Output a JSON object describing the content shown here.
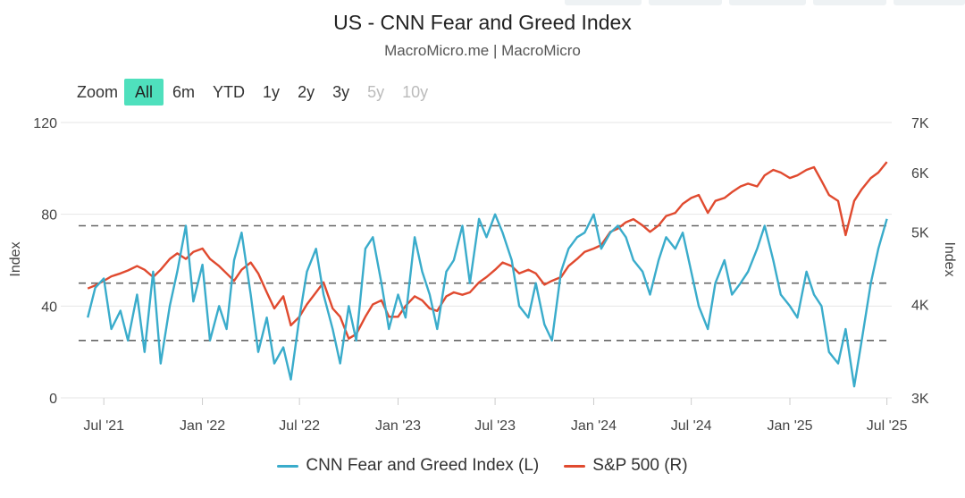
{
  "header": {
    "title": "US - CNN Fear and Greed Index",
    "subtitle": "MacroMicro.me | MacroMicro"
  },
  "zoom": {
    "label": "Zoom",
    "buttons": [
      {
        "label": "All",
        "state": "active"
      },
      {
        "label": "6m",
        "state": "normal"
      },
      {
        "label": "YTD",
        "state": "normal"
      },
      {
        "label": "1y",
        "state": "normal"
      },
      {
        "label": "2y",
        "state": "normal"
      },
      {
        "label": "3y",
        "state": "normal"
      },
      {
        "label": "5y",
        "state": "disabled"
      },
      {
        "label": "10y",
        "state": "disabled"
      }
    ]
  },
  "colors": {
    "fear_greed": "#3aaccb",
    "sp500": "#e04a2f",
    "grid": "#e6e6e6",
    "reference": "#666666",
    "zoom_active": "#4fe0bd"
  },
  "legend": {
    "fear_greed": "CNN Fear and Greed Index (L)",
    "sp500": "S&P 500 (R)"
  },
  "chart_data": {
    "type": "line",
    "left_axis": {
      "label": "Index",
      "ticks": [
        "120",
        "80",
        "40",
        "0"
      ],
      "range": [
        0,
        120
      ]
    },
    "right_axis": {
      "label": "Index",
      "ticks": [
        "7K",
        "6K",
        "5K",
        "4K",
        "3K"
      ],
      "range": [
        3000,
        7000
      ],
      "scale": "log"
    },
    "x_axis": {
      "ticks": [
        "Jul '21",
        "Jan '22",
        "Jul '22",
        "Jan '23",
        "Jul '23",
        "Jan '24",
        "Jul '24",
        "Jan '25",
        "Jul '25"
      ],
      "tick_dates": [
        "2021-07-01",
        "2022-01-01",
        "2022-07-01",
        "2023-01-01",
        "2023-07-01",
        "2024-01-01",
        "2024-07-01",
        "2025-01-01",
        "2025-07-01"
      ],
      "range": [
        "2021-05-15",
        "2025-07-10"
      ]
    },
    "reference_lines": [
      25,
      50,
      75
    ],
    "grid": true,
    "legend_position": "bottom-center",
    "series": [
      {
        "name": "CNN Fear and Greed Index (L)",
        "axis": "left",
        "x": [
          "2021-06-01",
          "2021-06-15",
          "2021-07-01",
          "2021-07-15",
          "2021-08-01",
          "2021-08-15",
          "2021-09-01",
          "2021-09-15",
          "2021-10-01",
          "2021-10-15",
          "2021-11-01",
          "2021-11-15",
          "2021-12-01",
          "2021-12-15",
          "2022-01-01",
          "2022-01-15",
          "2022-02-01",
          "2022-02-15",
          "2022-03-01",
          "2022-03-15",
          "2022-04-01",
          "2022-04-15",
          "2022-05-01",
          "2022-05-15",
          "2022-06-01",
          "2022-06-15",
          "2022-07-01",
          "2022-07-15",
          "2022-08-01",
          "2022-08-15",
          "2022-09-01",
          "2022-09-15",
          "2022-10-01",
          "2022-10-15",
          "2022-11-01",
          "2022-11-15",
          "2022-12-01",
          "2022-12-15",
          "2023-01-01",
          "2023-01-15",
          "2023-02-01",
          "2023-02-15",
          "2023-03-01",
          "2023-03-15",
          "2023-04-01",
          "2023-04-15",
          "2023-05-01",
          "2023-05-15",
          "2023-06-01",
          "2023-06-15",
          "2023-07-01",
          "2023-07-15",
          "2023-08-01",
          "2023-08-15",
          "2023-09-01",
          "2023-09-15",
          "2023-10-01",
          "2023-10-15",
          "2023-11-01",
          "2023-11-15",
          "2023-12-01",
          "2023-12-15",
          "2024-01-01",
          "2024-01-15",
          "2024-02-01",
          "2024-02-15",
          "2024-03-01",
          "2024-03-15",
          "2024-04-01",
          "2024-04-15",
          "2024-05-01",
          "2024-05-15",
          "2024-06-01",
          "2024-06-15",
          "2024-07-01",
          "2024-07-15",
          "2024-08-01",
          "2024-08-15",
          "2024-09-01",
          "2024-09-15",
          "2024-10-01",
          "2024-10-15",
          "2024-11-01",
          "2024-11-15",
          "2024-12-01",
          "2024-12-15",
          "2025-01-01",
          "2025-01-15",
          "2025-02-01",
          "2025-02-15",
          "2025-03-01",
          "2025-03-15",
          "2025-04-01",
          "2025-04-15",
          "2025-05-01",
          "2025-05-15",
          "2025-06-01",
          "2025-06-15",
          "2025-07-01"
        ],
        "values": [
          35,
          48,
          52,
          30,
          38,
          25,
          45,
          20,
          55,
          15,
          40,
          55,
          75,
          42,
          58,
          25,
          40,
          30,
          60,
          72,
          45,
          20,
          35,
          15,
          22,
          8,
          35,
          55,
          65,
          45,
          30,
          15,
          40,
          25,
          65,
          70,
          50,
          30,
          45,
          35,
          70,
          55,
          45,
          30,
          55,
          60,
          75,
          50,
          78,
          70,
          80,
          72,
          60,
          40,
          35,
          50,
          32,
          25,
          55,
          65,
          70,
          72,
          80,
          65,
          72,
          75,
          70,
          60,
          55,
          45,
          60,
          70,
          65,
          72,
          55,
          40,
          30,
          50,
          60,
          45,
          50,
          55,
          65,
          75,
          60,
          45,
          40,
          35,
          55,
          45,
          40,
          20,
          15,
          30,
          5,
          25,
          50,
          65,
          78
        ]
      },
      {
        "name": "S&P 500 (R)",
        "axis": "right",
        "x": [
          "2021-06-01",
          "2021-06-15",
          "2021-07-01",
          "2021-07-15",
          "2021-08-01",
          "2021-08-15",
          "2021-09-01",
          "2021-09-15",
          "2021-10-01",
          "2021-10-15",
          "2021-11-01",
          "2021-11-15",
          "2021-12-01",
          "2021-12-15",
          "2022-01-01",
          "2022-01-15",
          "2022-02-01",
          "2022-02-15",
          "2022-03-01",
          "2022-03-15",
          "2022-04-01",
          "2022-04-15",
          "2022-05-01",
          "2022-05-15",
          "2022-06-01",
          "2022-06-15",
          "2022-07-01",
          "2022-07-15",
          "2022-08-01",
          "2022-08-15",
          "2022-09-01",
          "2022-09-15",
          "2022-10-01",
          "2022-10-15",
          "2022-11-01",
          "2022-11-15",
          "2022-12-01",
          "2022-12-15",
          "2023-01-01",
          "2023-01-15",
          "2023-02-01",
          "2023-02-15",
          "2023-03-01",
          "2023-03-15",
          "2023-04-01",
          "2023-04-15",
          "2023-05-01",
          "2023-05-15",
          "2023-06-01",
          "2023-06-15",
          "2023-07-01",
          "2023-07-15",
          "2023-08-01",
          "2023-08-15",
          "2023-09-01",
          "2023-09-15",
          "2023-10-01",
          "2023-10-15",
          "2023-11-01",
          "2023-11-15",
          "2023-12-01",
          "2023-12-15",
          "2024-01-01",
          "2024-01-15",
          "2024-02-01",
          "2024-02-15",
          "2024-03-01",
          "2024-03-15",
          "2024-04-01",
          "2024-04-15",
          "2024-05-01",
          "2024-05-15",
          "2024-06-01",
          "2024-06-15",
          "2024-07-01",
          "2024-07-15",
          "2024-08-01",
          "2024-08-15",
          "2024-09-01",
          "2024-09-15",
          "2024-10-01",
          "2024-10-15",
          "2024-11-01",
          "2024-11-15",
          "2024-12-01",
          "2024-12-15",
          "2025-01-01",
          "2025-01-15",
          "2025-02-01",
          "2025-02-15",
          "2025-03-01",
          "2025-03-15",
          "2025-04-01",
          "2025-04-15",
          "2025-05-01",
          "2025-05-15",
          "2025-06-01",
          "2025-06-15",
          "2025-07-01"
        ],
        "values": [
          4200,
          4240,
          4300,
          4360,
          4400,
          4440,
          4500,
          4450,
          4350,
          4450,
          4600,
          4680,
          4600,
          4700,
          4750,
          4600,
          4500,
          4400,
          4300,
          4450,
          4550,
          4400,
          4150,
          3950,
          4100,
          3750,
          3850,
          4000,
          4150,
          4280,
          3950,
          3850,
          3600,
          3650,
          3850,
          4000,
          4050,
          3850,
          3850,
          3980,
          4100,
          4050,
          3950,
          3920,
          4100,
          4150,
          4120,
          4150,
          4280,
          4350,
          4450,
          4550,
          4500,
          4400,
          4450,
          4400,
          4250,
          4300,
          4350,
          4500,
          4600,
          4700,
          4750,
          4800,
          5000,
          5050,
          5150,
          5200,
          5100,
          5000,
          5100,
          5250,
          5300,
          5450,
          5550,
          5600,
          5300,
          5500,
          5550,
          5650,
          5750,
          5800,
          5750,
          5950,
          6050,
          6000,
          5900,
          5950,
          6050,
          6100,
          5850,
          5600,
          5500,
          4950,
          5500,
          5700,
          5900,
          6000,
          6200
        ]
      }
    ]
  }
}
